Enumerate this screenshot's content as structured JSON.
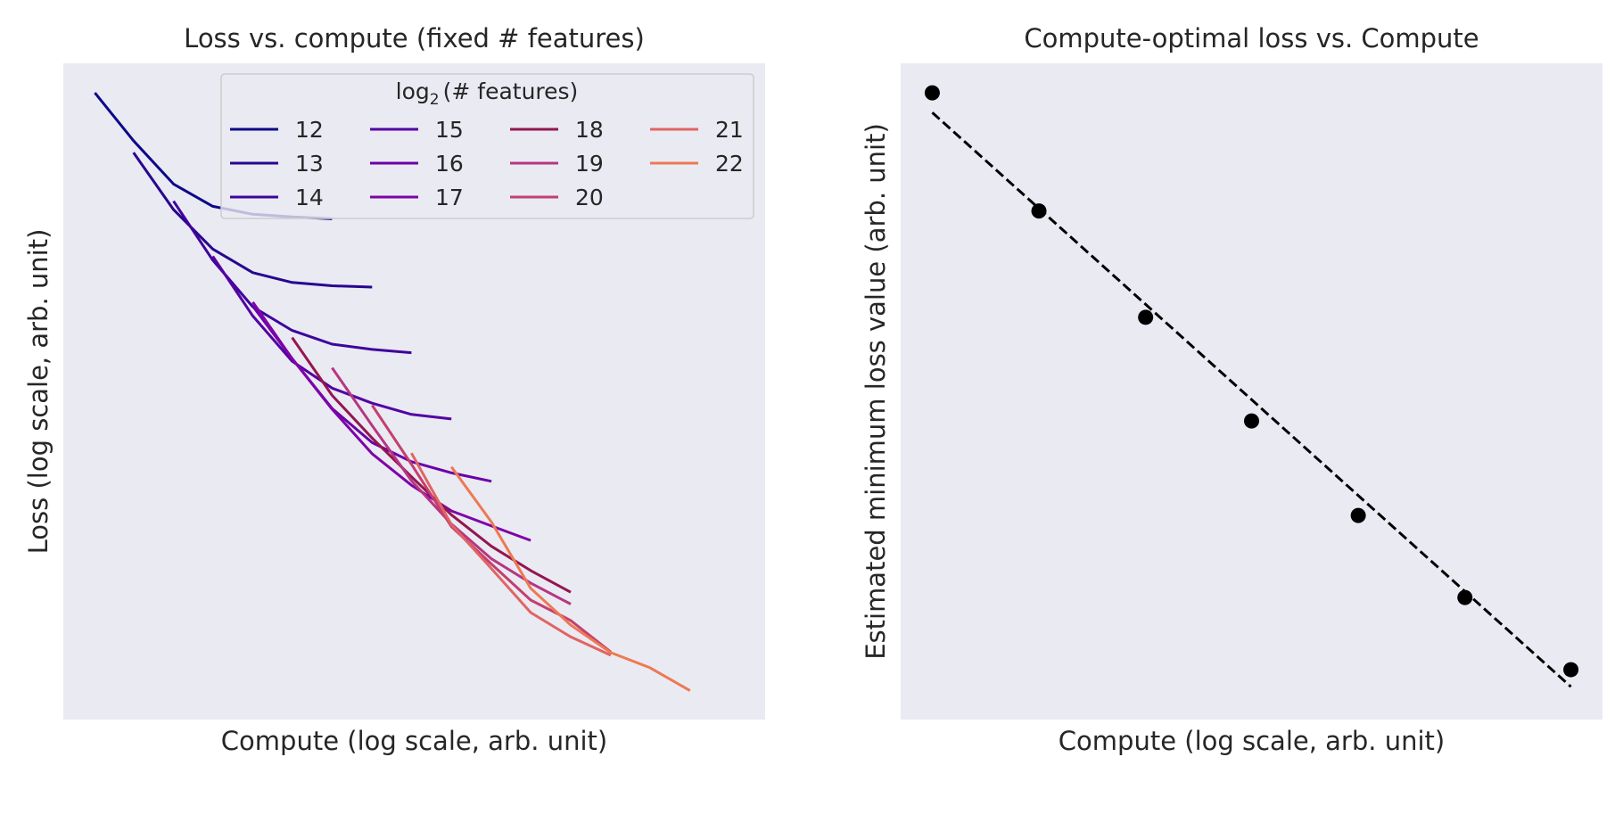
{
  "chart_data": [
    {
      "type": "line",
      "title": "Loss vs. compute (fixed # features)",
      "xlabel": "Compute (log scale, arb. unit)",
      "ylabel": "Loss (log scale, arb. unit)",
      "xlim": [
        0,
        1
      ],
      "ylim": [
        0,
        1
      ],
      "xscale": "log",
      "yscale": "log",
      "ticks_shown": false,
      "grid": false,
      "legend": {
        "title_prefix": "log",
        "title_subscript": "2",
        "title_suffix": "(# features)",
        "placement": "upper right",
        "columns": 4
      },
      "series": [
        {
          "name": "12",
          "color": "#0d0887",
          "x": [
            0.045,
            0.1,
            0.157,
            0.213,
            0.27,
            0.326,
            0.383
          ],
          "y": [
            0.955,
            0.882,
            0.816,
            0.782,
            0.77,
            0.766,
            0.763
          ]
        },
        {
          "name": "13",
          "color": "#27068f",
          "x": [
            0.1,
            0.157,
            0.213,
            0.27,
            0.326,
            0.383,
            0.44
          ],
          "y": [
            0.864,
            0.777,
            0.717,
            0.681,
            0.666,
            0.661,
            0.659
          ]
        },
        {
          "name": "14",
          "color": "#3e049c",
          "x": [
            0.157,
            0.213,
            0.27,
            0.326,
            0.383,
            0.44,
            0.496
          ],
          "y": [
            0.79,
            0.7,
            0.629,
            0.593,
            0.572,
            0.564,
            0.559
          ]
        },
        {
          "name": "15",
          "color": "#5402a3",
          "x": [
            0.213,
            0.27,
            0.326,
            0.383,
            0.44,
            0.496,
            0.553
          ],
          "y": [
            0.706,
            0.615,
            0.546,
            0.505,
            0.482,
            0.465,
            0.458
          ]
        },
        {
          "name": "16",
          "color": "#6a00a8",
          "x": [
            0.27,
            0.326,
            0.383,
            0.44,
            0.496,
            0.553,
            0.61
          ],
          "y": [
            0.63,
            0.55,
            0.474,
            0.422,
            0.393,
            0.376,
            0.363
          ]
        },
        {
          "name": "17",
          "color": "#7e03a8",
          "x": [
            0.27,
            0.326,
            0.383,
            0.44,
            0.496,
            0.553,
            0.61,
            0.666
          ],
          "y": [
            0.636,
            0.55,
            0.473,
            0.405,
            0.357,
            0.318,
            0.295,
            0.273
          ]
        },
        {
          "name": "18",
          "color": "#93164f",
          "x": [
            0.326,
            0.383,
            0.44,
            0.496,
            0.553,
            0.61,
            0.666,
            0.723
          ],
          "y": [
            0.582,
            0.494,
            0.429,
            0.37,
            0.312,
            0.264,
            0.227,
            0.194
          ]
        },
        {
          "name": "19",
          "color": "#b63680",
          "x": [
            0.383,
            0.44,
            0.496,
            0.553,
            0.61,
            0.666,
            0.723
          ],
          "y": [
            0.536,
            0.448,
            0.364,
            0.298,
            0.245,
            0.208,
            0.176
          ]
        },
        {
          "name": "20",
          "color": "#c43f6e",
          "x": [
            0.44,
            0.496,
            0.553,
            0.61,
            0.666,
            0.723,
            0.78
          ],
          "y": [
            0.479,
            0.389,
            0.294,
            0.237,
            0.182,
            0.151,
            0.103
          ]
        },
        {
          "name": "21",
          "color": "#e16462",
          "x": [
            0.496,
            0.553,
            0.61,
            0.666,
            0.723,
            0.78
          ],
          "y": [
            0.406,
            0.297,
            0.23,
            0.163,
            0.126,
            0.098
          ]
        },
        {
          "name": "22",
          "color": "#ed7953",
          "x": [
            0.553,
            0.61,
            0.666,
            0.723,
            0.78,
            0.836,
            0.893
          ],
          "y": [
            0.385,
            0.301,
            0.2,
            0.144,
            0.102,
            0.079,
            0.044
          ]
        }
      ]
    },
    {
      "type": "scatter",
      "title": "Compute-optimal loss vs. Compute",
      "xlabel": "Compute (log scale, arb. unit)",
      "ylabel": "Estimated minimum loss value (arb. unit)",
      "xlim": [
        0,
        1
      ],
      "ylim": [
        0,
        1
      ],
      "xscale": "log",
      "yscale": "log",
      "ticks_shown": false,
      "grid": false,
      "points": {
        "color": "#000000",
        "x": [
          0.045,
          0.197,
          0.349,
          0.5,
          0.652,
          0.804,
          0.955
        ],
        "y": [
          0.955,
          0.775,
          0.613,
          0.455,
          0.311,
          0.186,
          0.076
        ]
      },
      "fit_line": {
        "style": "dashed",
        "color": "#000000",
        "x": [
          0.045,
          0.955
        ],
        "y": [
          0.925,
          0.05
        ]
      }
    }
  ]
}
